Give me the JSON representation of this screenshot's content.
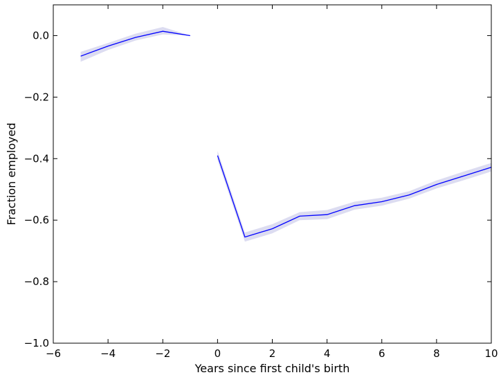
{
  "chart_data": {
    "type": "line",
    "title": "",
    "xlabel": "Years since first child's birth",
    "ylabel": "Fraction employed",
    "xlim": [
      -6,
      10
    ],
    "ylim": [
      -1.0,
      0.1
    ],
    "x_ticks": [
      -6,
      -4,
      -2,
      0,
      2,
      4,
      6,
      8,
      10
    ],
    "x_tick_labels": [
      "−6",
      "−4",
      "−2",
      "0",
      "2",
      "4",
      "6",
      "8",
      "10"
    ],
    "y_ticks": [
      0.0,
      -0.2,
      -0.4,
      -0.6,
      -0.8,
      -1.0
    ],
    "y_tick_labels": [
      "0.0",
      "−0.2",
      "−0.4",
      "−0.6",
      "−0.8",
      "−1.0"
    ],
    "grid": false,
    "series": [
      {
        "color": "#0000ff",
        "band_color": "#d8d8f0",
        "segments": [
          {
            "x": [
              -5,
              -4,
              -3,
              -2,
              -1
            ],
            "y": [
              -0.067,
              -0.034,
              -0.006,
              0.014,
              0.0
            ],
            "ci_lower": [
              -0.085,
              -0.047,
              -0.016,
              0.004,
              0.0
            ],
            "ci_upper": [
              -0.053,
              -0.024,
              0.006,
              0.028,
              0.0
            ]
          },
          {
            "x": [
              0,
              1,
              2,
              3,
              4,
              5,
              6,
              7,
              8,
              9,
              10
            ],
            "y": [
              -0.39,
              -0.655,
              -0.628,
              -0.587,
              -0.582,
              -0.553,
              -0.54,
              -0.518,
              -0.484,
              -0.456,
              -0.428
            ],
            "ci_lower": [
              -0.405,
              -0.67,
              -0.643,
              -0.6,
              -0.597,
              -0.566,
              -0.553,
              -0.53,
              -0.497,
              -0.47,
              -0.442
            ],
            "ci_upper": [
              -0.375,
              -0.64,
              -0.613,
              -0.574,
              -0.567,
              -0.54,
              -0.527,
              -0.506,
              -0.471,
              -0.442,
              -0.414
            ]
          }
        ]
      }
    ]
  }
}
